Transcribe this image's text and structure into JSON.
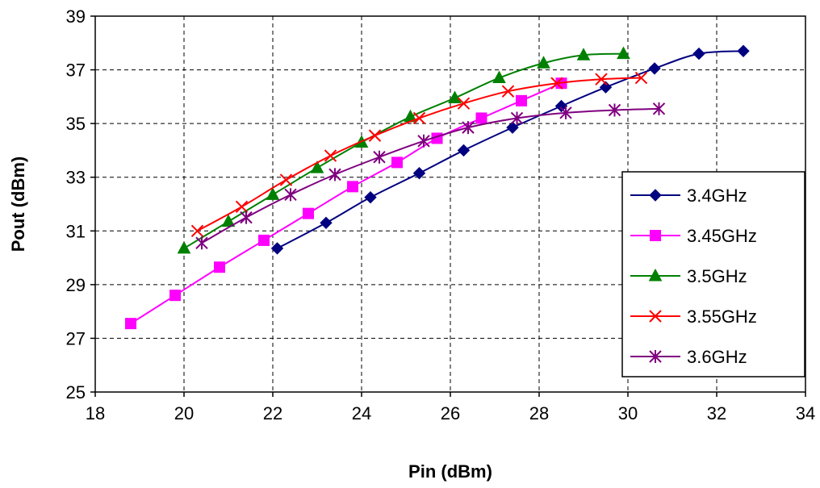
{
  "chart_data": {
    "type": "line",
    "title": "",
    "xlabel": "Pin (dBm)",
    "ylabel": "Pout (dBm)",
    "xlim": [
      18,
      34
    ],
    "ylim": [
      25,
      39
    ],
    "xticks": [
      18,
      20,
      22,
      24,
      26,
      28,
      30,
      32,
      34
    ],
    "yticks": [
      25,
      27,
      29,
      31,
      33,
      35,
      37,
      39
    ],
    "grid": true,
    "legend_position": "right",
    "series": [
      {
        "name": "3.4GHz",
        "color": "#000080",
        "marker": "diamond",
        "x": [
          22.1,
          23.2,
          24.2,
          25.3,
          26.3,
          27.4,
          28.5,
          29.5,
          30.6,
          31.6,
          32.6
        ],
        "y": [
          30.35,
          31.3,
          32.25,
          33.15,
          34.0,
          34.85,
          35.65,
          36.35,
          37.05,
          37.6,
          37.7
        ]
      },
      {
        "name": "3.45GHz",
        "color": "#FF00FF",
        "marker": "square",
        "x": [
          18.8,
          19.8,
          20.8,
          21.8,
          22.8,
          23.8,
          24.8,
          25.7,
          26.7,
          27.6,
          28.5
        ],
        "y": [
          27.55,
          28.6,
          29.65,
          30.65,
          31.65,
          32.65,
          33.55,
          34.45,
          35.2,
          35.85,
          36.5
        ]
      },
      {
        "name": "3.5GHz",
        "color": "#008000",
        "marker": "triangle",
        "x": [
          20.0,
          21.0,
          22.0,
          23.0,
          24.0,
          25.1,
          26.1,
          27.1,
          28.1,
          29.0,
          29.9
        ],
        "y": [
          30.35,
          31.35,
          32.35,
          33.35,
          34.3,
          35.25,
          35.95,
          36.7,
          37.25,
          37.55,
          37.6
        ]
      },
      {
        "name": "3.55GHz",
        "color": "#FF0000",
        "marker": "x",
        "x": [
          20.3,
          21.3,
          22.3,
          23.3,
          24.3,
          25.3,
          26.3,
          27.3,
          28.4,
          29.4,
          30.3
        ],
        "y": [
          31.0,
          31.9,
          32.9,
          33.8,
          34.55,
          35.2,
          35.75,
          36.2,
          36.5,
          36.65,
          36.7
        ]
      },
      {
        "name": "3.6GHz",
        "color": "#800080",
        "marker": "asterisk",
        "x": [
          20.4,
          21.4,
          22.4,
          23.4,
          24.4,
          25.4,
          26.4,
          27.5,
          28.6,
          29.7,
          30.7
        ],
        "y": [
          30.55,
          31.5,
          32.35,
          33.1,
          33.75,
          34.35,
          34.85,
          35.2,
          35.4,
          35.5,
          35.55
        ]
      }
    ]
  }
}
